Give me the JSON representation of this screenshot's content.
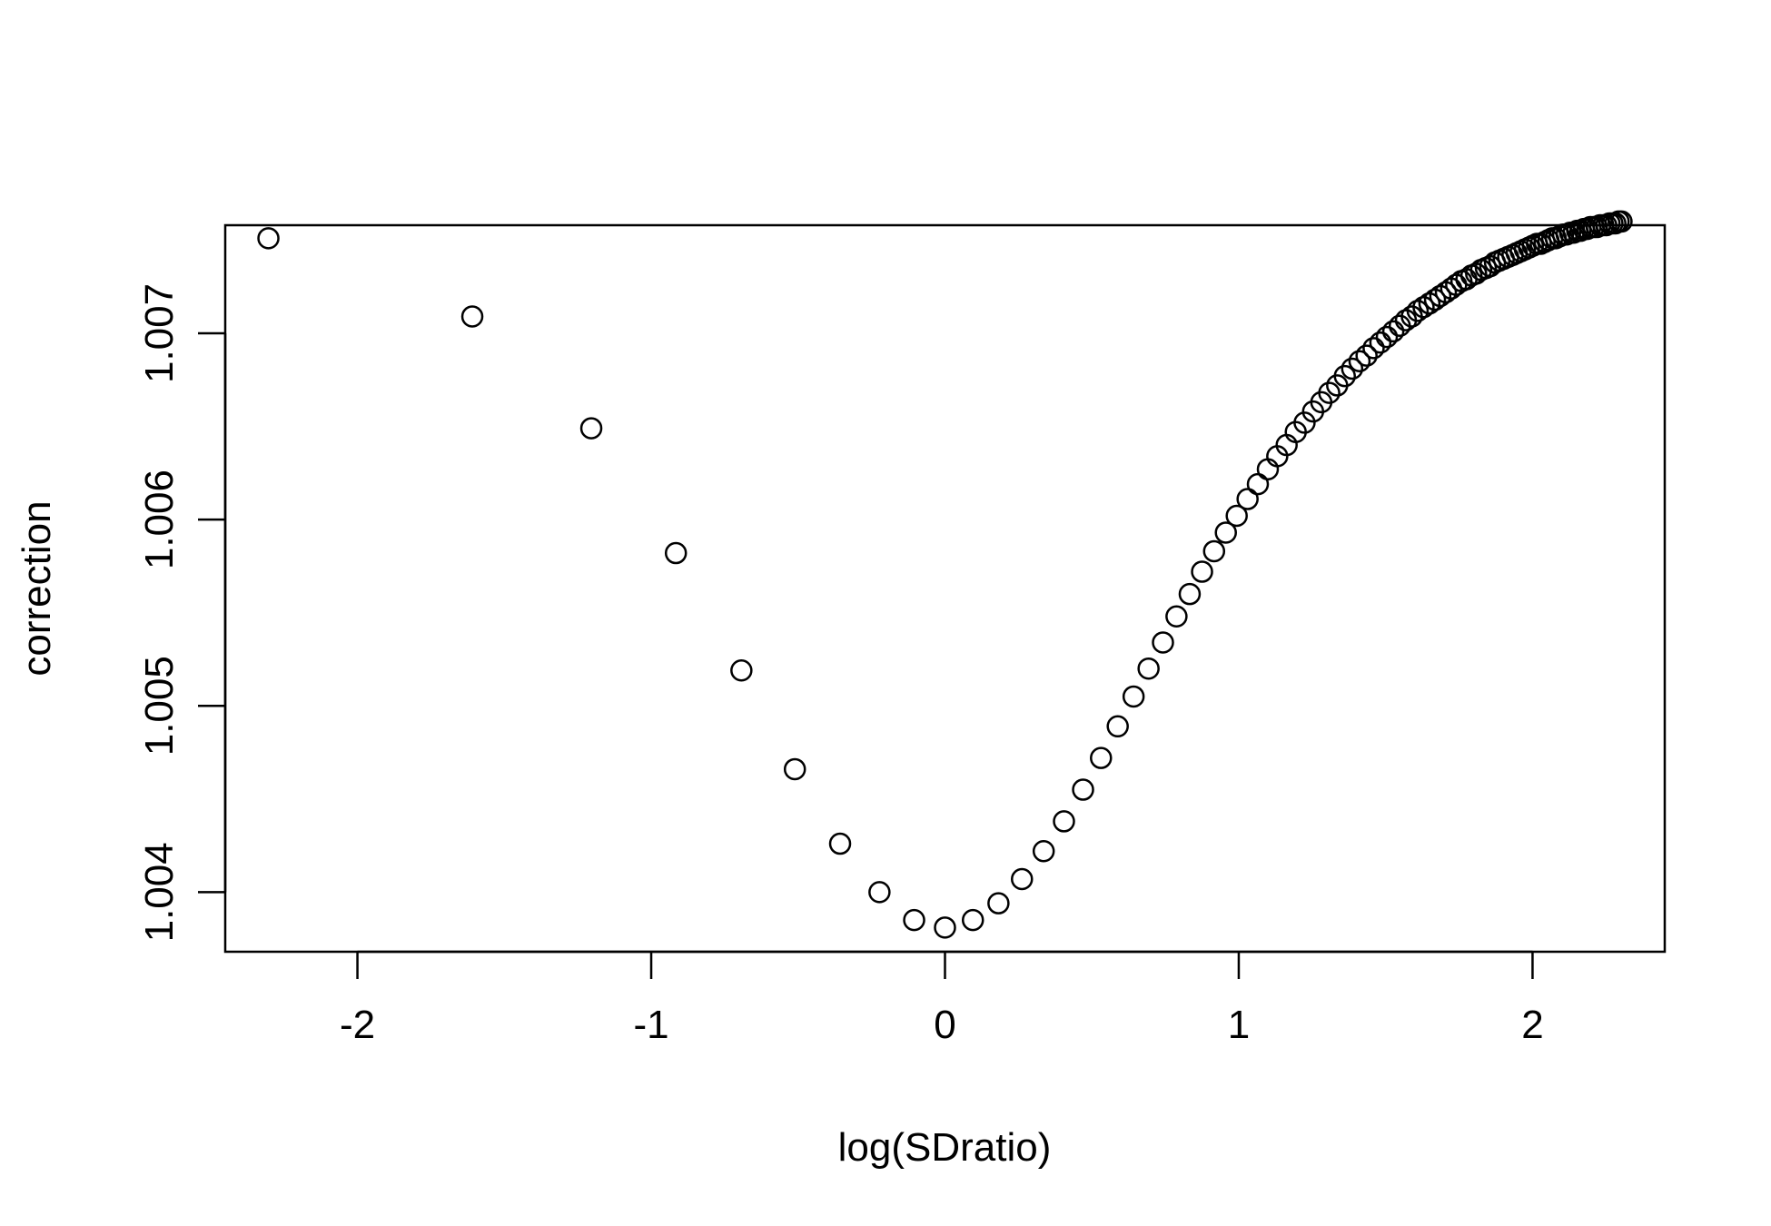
{
  "chart_data": {
    "type": "scatter",
    "title": "",
    "xlabel": "log(SDratio)",
    "ylabel": "correction",
    "xlim": [
      -2.45,
      2.45
    ],
    "ylim": [
      1.00368,
      1.00758
    ],
    "x_ticks": [
      -2,
      -1,
      0,
      1,
      2
    ],
    "x_tick_labels": [
      "-2",
      "-1",
      "0",
      "1",
      "2"
    ],
    "y_ticks": [
      1.004,
      1.005,
      1.006,
      1.007
    ],
    "y_tick_labels": [
      "1.004",
      "1.005",
      "1.006",
      "1.007"
    ],
    "grid": false,
    "legend": "none",
    "marker": "open-circle",
    "color": "#000000",
    "series": [
      {
        "x": [
          -2.303,
          -1.609,
          -1.204,
          -0.916,
          -0.693,
          -0.511,
          -0.357,
          -0.223,
          -0.105,
          0.0,
          0.095,
          0.182,
          0.262,
          0.336,
          0.405,
          0.47,
          0.531,
          0.588,
          0.642,
          0.693,
          0.742,
          0.788,
          0.833,
          0.875,
          0.916,
          0.956,
          0.993,
          1.03,
          1.065,
          1.099,
          1.131,
          1.163,
          1.194,
          1.224,
          1.253,
          1.281,
          1.308,
          1.335,
          1.361,
          1.386,
          1.411,
          1.435,
          1.459,
          1.482,
          1.504,
          1.526,
          1.548,
          1.569,
          1.589,
          1.609,
          1.629,
          1.649,
          1.668,
          1.686,
          1.705,
          1.723,
          1.74,
          1.758,
          1.775,
          1.792,
          1.808,
          1.825,
          1.841,
          1.856,
          1.872,
          1.887,
          1.902,
          1.917,
          1.932,
          1.946,
          1.96,
          1.974,
          1.988,
          2.001,
          2.015,
          2.028,
          2.041,
          2.054,
          2.067,
          2.079,
          2.092,
          2.104,
          2.116,
          2.128,
          2.14,
          2.152,
          2.163,
          2.175,
          2.186,
          2.197,
          2.208,
          2.219,
          2.23,
          2.241,
          2.251,
          2.262,
          2.272,
          2.282,
          2.293,
          2.303
        ],
        "y": [
          1.00751,
          1.00709,
          1.00649,
          1.00582,
          1.00519,
          1.00466,
          1.00426,
          1.004,
          1.00385,
          1.00381,
          1.00385,
          1.00394,
          1.00407,
          1.00422,
          1.00438,
          1.00455,
          1.00472,
          1.00489,
          1.00505,
          1.0052,
          1.00534,
          1.00548,
          1.0056,
          1.00572,
          1.00583,
          1.00593,
          1.00602,
          1.00611,
          1.00619,
          1.00627,
          1.00634,
          1.0064,
          1.00647,
          1.00652,
          1.00658,
          1.00663,
          1.00668,
          1.00672,
          1.00677,
          1.00681,
          1.00685,
          1.00688,
          1.00692,
          1.00695,
          1.00698,
          1.00701,
          1.00704,
          1.00707,
          1.00709,
          1.00712,
          1.00714,
          1.00716,
          1.00718,
          1.0072,
          1.00722,
          1.00724,
          1.00726,
          1.00728,
          1.00729,
          1.00731,
          1.00732,
          1.00734,
          1.00735,
          1.00736,
          1.00738,
          1.00739,
          1.0074,
          1.00741,
          1.00742,
          1.00743,
          1.00744,
          1.00745,
          1.00746,
          1.00747,
          1.00748,
          1.00748,
          1.00749,
          1.0075,
          1.00751,
          1.00751,
          1.00752,
          1.00753,
          1.00753,
          1.00754,
          1.00754,
          1.00755,
          1.00755,
          1.00756,
          1.00756,
          1.00757,
          1.00757,
          1.00757,
          1.00758,
          1.00758,
          1.00758,
          1.00759,
          1.00759,
          1.00759,
          1.0076,
          1.0076
        ]
      }
    ]
  }
}
